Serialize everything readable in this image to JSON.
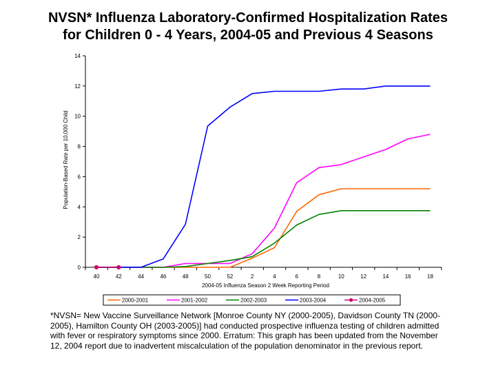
{
  "title_lines": [
    "NVSN* Influenza Laboratory-Confirmed Hospitalization Rates",
    "for Children 0 - 4 Years, 2004-05 and Previous 4 Seasons"
  ],
  "footnote": "*NVSN= New Vaccine Surveillance Network [Monroe County NY (2000-2005), Davidson County TN (2000-2005), Hamilton County OH (2003-2005)] had conducted prospective influenza testing of children admitted with fever or respiratory symptoms since 2000. Erratum: This graph has been updated from the November 12, 2004 report due to inadvertent miscalculation of the population denominator in the previous report.",
  "chart_data": {
    "type": "line",
    "title": "NVSN* Influenza Laboratory-Confirmed Hospitalization Rates for Children 0 - 4 Years, 2004-05 and Previous 4 Seasons",
    "xlabel": "2004-05 Influenza Season 2 Week Reporting Period",
    "ylabel": "Population-Based Rate per 10,000 Child",
    "ylim": [
      0,
      14
    ],
    "yticks": [
      0,
      2,
      4,
      6,
      8,
      10,
      12,
      14
    ],
    "categories": [
      "40",
      "42",
      "44",
      "46",
      "48",
      "50",
      "52",
      "2",
      "4",
      "6",
      "8",
      "10",
      "12",
      "14",
      "16",
      "18"
    ],
    "grid": false,
    "legend_position": "bottom",
    "series": [
      {
        "name": "2000-2001",
        "color": "#FF6600",
        "marker": "none",
        "values": [
          0,
          0,
          0,
          0,
          0,
          0,
          0,
          0.6,
          1.3,
          3.7,
          4.8,
          5.2,
          5.2,
          5.2,
          5.2,
          5.2
        ]
      },
      {
        "name": "2001-2002",
        "color": "#FF00FF",
        "marker": "none",
        "values": [
          0,
          0,
          0,
          0,
          0.25,
          0.25,
          0.25,
          0.9,
          2.6,
          5.6,
          6.6,
          6.8,
          7.3,
          7.8,
          8.5,
          8.8
        ]
      },
      {
        "name": "2002-2003",
        "color": "#008000",
        "marker": "none",
        "values": [
          0,
          0,
          0,
          0,
          0.05,
          0.25,
          0.45,
          0.7,
          1.6,
          2.8,
          3.5,
          3.75,
          3.75,
          3.75,
          3.75,
          3.75
        ]
      },
      {
        "name": "2003-2004",
        "color": "#0000FF",
        "marker": "none",
        "values": [
          0,
          0,
          0,
          0.55,
          2.85,
          9.35,
          10.6,
          11.5,
          11.65,
          11.65,
          11.65,
          11.8,
          11.8,
          12.0,
          12.0,
          12.0
        ]
      },
      {
        "name": "2004-2005",
        "color": "#CC0066",
        "marker": "circle",
        "values": [
          0,
          0,
          null,
          null,
          null,
          null,
          null,
          null,
          null,
          null,
          null,
          null,
          null,
          null,
          null,
          null
        ]
      }
    ]
  }
}
